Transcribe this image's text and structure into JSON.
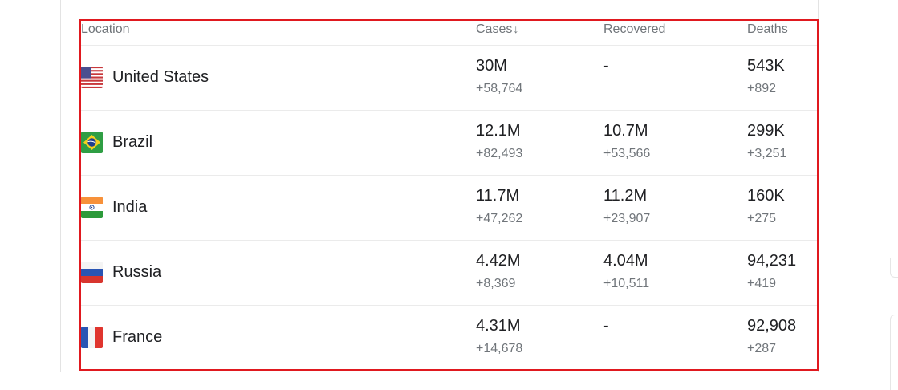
{
  "header": {
    "location": "Location",
    "cases": "Cases",
    "cases_sort_arrow": "↓",
    "recovered": "Recovered",
    "deaths": "Deaths"
  },
  "rows": [
    {
      "country": "United States",
      "flag": "us-flag",
      "cases": "30M",
      "cases_delta": "+58,764",
      "recovered": "-",
      "recovered_delta": "",
      "deaths": "543K",
      "deaths_delta": "+892"
    },
    {
      "country": "Brazil",
      "flag": "brazil-flag",
      "cases": "12.1M",
      "cases_delta": "+82,493",
      "recovered": "10.7M",
      "recovered_delta": "+53,566",
      "deaths": "299K",
      "deaths_delta": "+3,251"
    },
    {
      "country": "India",
      "flag": "india-flag",
      "cases": "11.7M",
      "cases_delta": "+47,262",
      "recovered": "11.2M",
      "recovered_delta": "+23,907",
      "deaths": "160K",
      "deaths_delta": "+275"
    },
    {
      "country": "Russia",
      "flag": "russia-flag",
      "cases": "4.42M",
      "cases_delta": "+8,369",
      "recovered": "4.04M",
      "recovered_delta": "+10,511",
      "deaths": "94,231",
      "deaths_delta": "+419"
    },
    {
      "country": "France",
      "flag": "france-flag",
      "cases": "4.31M",
      "cases_delta": "+14,678",
      "recovered": "-",
      "recovered_delta": "",
      "deaths": "92,908",
      "deaths_delta": "+287"
    }
  ],
  "colors": {
    "highlight_border": "#e0191f",
    "secondary_text": "#70757a",
    "primary_text": "#202124"
  }
}
